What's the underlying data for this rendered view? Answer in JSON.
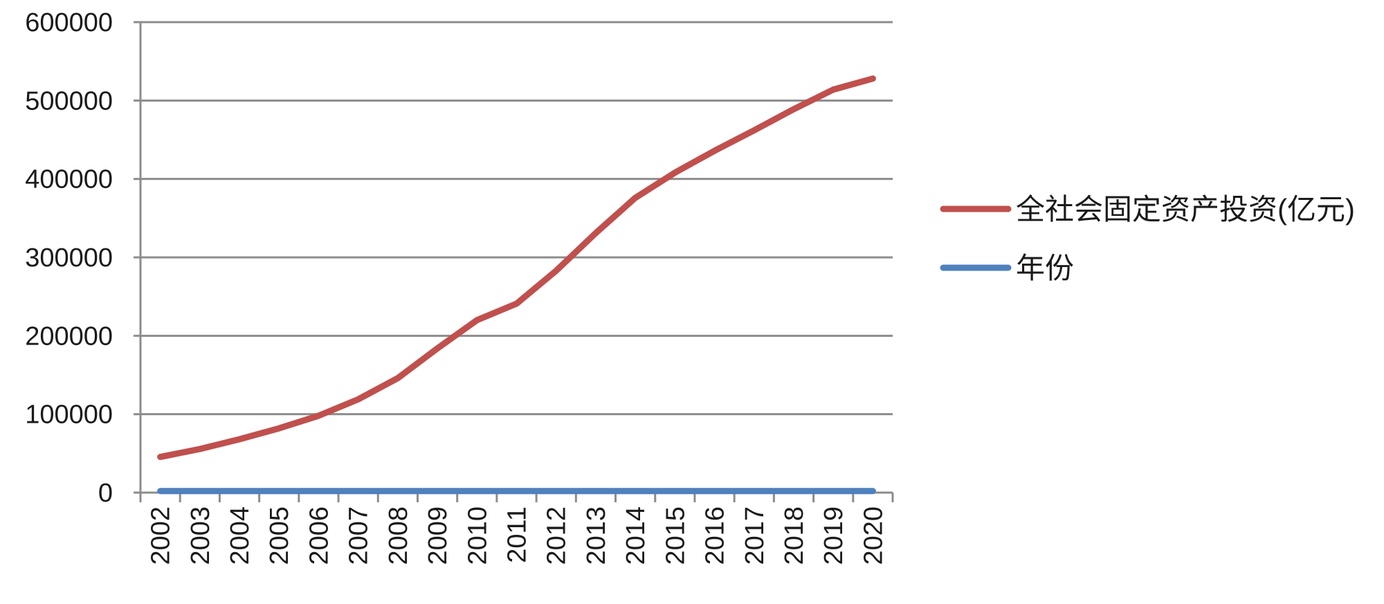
{
  "chart_data": {
    "type": "line",
    "title": "",
    "xlabel": "",
    "ylabel": "",
    "ylim": [
      0,
      600000
    ],
    "yticks": [
      "0",
      "100000",
      "200000",
      "300000",
      "400000",
      "500000",
      "600000"
    ],
    "categories": [
      "2002",
      "2003",
      "2004",
      "2005",
      "2006",
      "2007",
      "2008",
      "2009",
      "2010",
      "2011",
      "2012",
      "2013",
      "2014",
      "2015",
      "2016",
      "2017",
      "2018",
      "2019",
      "2020"
    ],
    "series": [
      {
        "name": "全社会固定资产投资(亿元)",
        "color": "#c0504d",
        "values": [
          45500,
          55600,
          68000,
          82000,
          98000,
          119000,
          146000,
          184000,
          220000,
          241000,
          283000,
          331000,
          376000,
          408000,
          436000,
          462000,
          489000,
          514000,
          528000
        ]
      },
      {
        "name": "年份",
        "color": "#4f81bd",
        "values": [
          2002,
          2003,
          2004,
          2005,
          2006,
          2007,
          2008,
          2009,
          2010,
          2011,
          2012,
          2013,
          2014,
          2015,
          2016,
          2017,
          2018,
          2019,
          2020
        ]
      }
    ],
    "grid": true,
    "legend_position": "right"
  }
}
